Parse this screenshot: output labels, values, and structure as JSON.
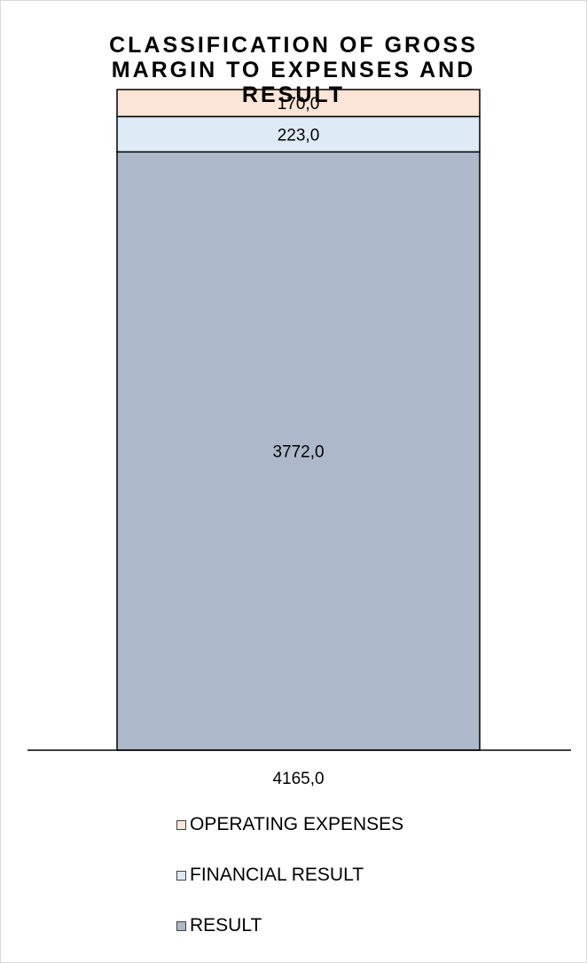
{
  "chart_data": {
    "type": "bar",
    "stacked": true,
    "title": "CLASSIFICATION OF GROSS MARGIN TO EXPENSES AND RESULT",
    "categories": [
      "4165,0"
    ],
    "series": [
      {
        "name": "RESULT",
        "values": [
          3772.0
        ],
        "label": "3772,0",
        "color": "#adb9ca"
      },
      {
        "name": "FINANCIAL RESULT",
        "values": [
          223.0
        ],
        "label": "223,0",
        "color": "#deebf7"
      },
      {
        "name": "OPERATING EXPENSES",
        "values": [
          170.0
        ],
        "label": "170,0",
        "color": "#fbe5d6"
      }
    ],
    "legend_order": [
      "OPERATING EXPENSES",
      "FINANCIAL RESULT",
      "RESULT"
    ],
    "legend_position": "bottom",
    "grid": false
  }
}
